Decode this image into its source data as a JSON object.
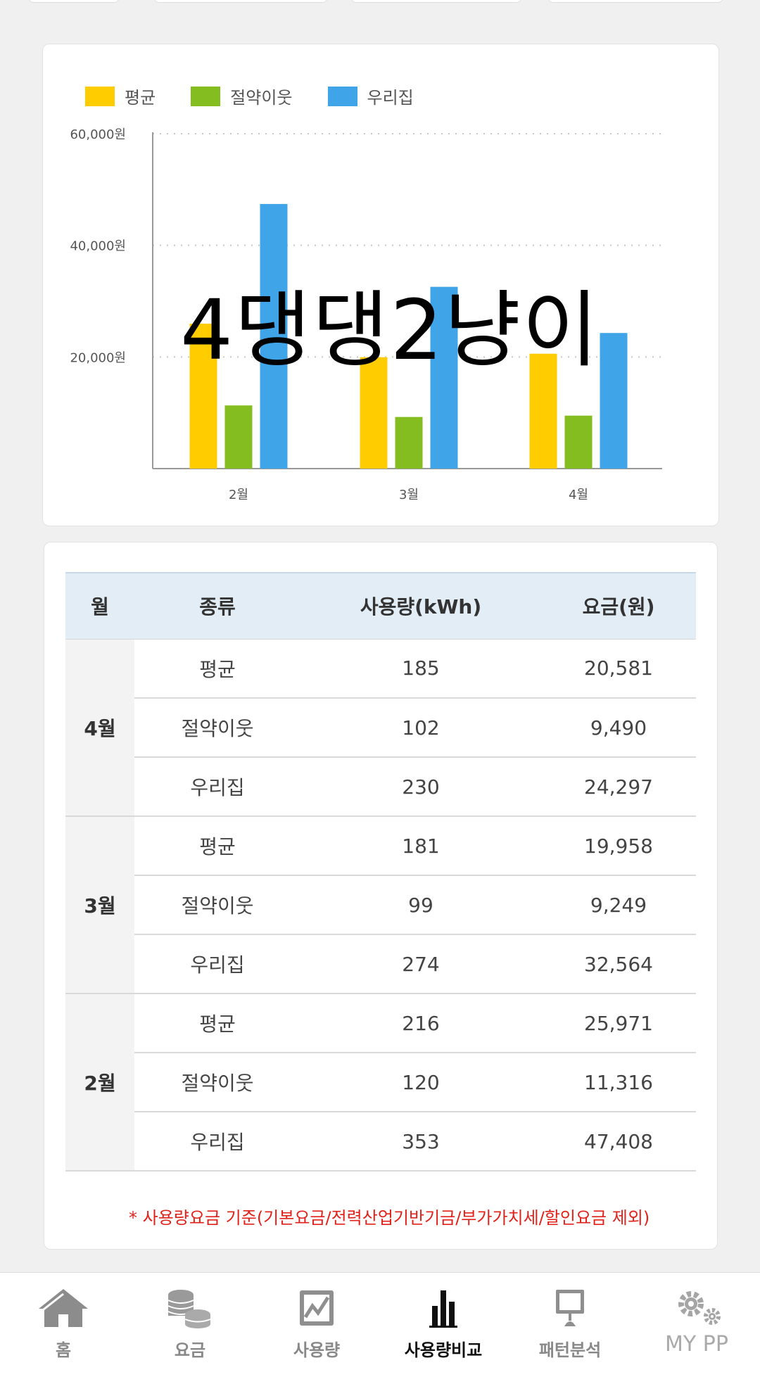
{
  "chart": {
    "legend": [
      {
        "label": "평균",
        "color": "#ffcc00"
      },
      {
        "label": "절약이웃",
        "color": "#84bd1f"
      },
      {
        "label": "우리집",
        "color": "#3fa5e8"
      }
    ],
    "overlay_text": "4댕댕2냥이"
  },
  "chart_data": {
    "type": "bar",
    "categories": [
      "2월",
      "3월",
      "4월"
    ],
    "series": [
      {
        "name": "평균",
        "values": [
          25971,
          19958,
          20581
        ]
      },
      {
        "name": "절약이웃",
        "values": [
          11316,
          9249,
          9490
        ]
      },
      {
        "name": "우리집",
        "values": [
          47408,
          32564,
          24297
        ]
      }
    ],
    "y_ticks": [
      "20,000원",
      "40,000원",
      "60,000원"
    ],
    "y_tick_values": [
      20000,
      40000,
      60000
    ],
    "ylim": [
      0,
      60000
    ],
    "grid": true,
    "legend_position": "top-left"
  },
  "table": {
    "headers": {
      "month": "월",
      "type": "종류",
      "usage": "사용량(kWh)",
      "fee": "요금(원)"
    },
    "groups": [
      {
        "month": "4월",
        "rows": [
          {
            "type": "평균",
            "usage": "185",
            "fee": "20,581"
          },
          {
            "type": "절약이웃",
            "usage": "102",
            "fee": "9,490"
          },
          {
            "type": "우리집",
            "usage": "230",
            "fee": "24,297"
          }
        ]
      },
      {
        "month": "3월",
        "rows": [
          {
            "type": "평균",
            "usage": "181",
            "fee": "19,958"
          },
          {
            "type": "절약이웃",
            "usage": "99",
            "fee": "9,249"
          },
          {
            "type": "우리집",
            "usage": "274",
            "fee": "32,564"
          }
        ]
      },
      {
        "month": "2월",
        "rows": [
          {
            "type": "평균",
            "usage": "216",
            "fee": "25,971"
          },
          {
            "type": "절약이웃",
            "usage": "120",
            "fee": "11,316"
          },
          {
            "type": "우리집",
            "usage": "353",
            "fee": "47,408"
          }
        ]
      }
    ],
    "note": "* 사용량요금 기준(기본요금/전력산업기반기금/부가가치세/할인요금 제외)"
  },
  "nav": {
    "items": [
      {
        "label": "홈",
        "icon": "home-icon"
      },
      {
        "label": "요금",
        "icon": "coins-icon"
      },
      {
        "label": "사용량",
        "icon": "usage-chart-icon"
      },
      {
        "label": "사용량비교",
        "icon": "bar-compare-icon",
        "active": true
      },
      {
        "label": "패턴분석",
        "icon": "monitor-icon"
      },
      {
        "label": "MY PP",
        "icon": "gears-icon"
      }
    ]
  }
}
